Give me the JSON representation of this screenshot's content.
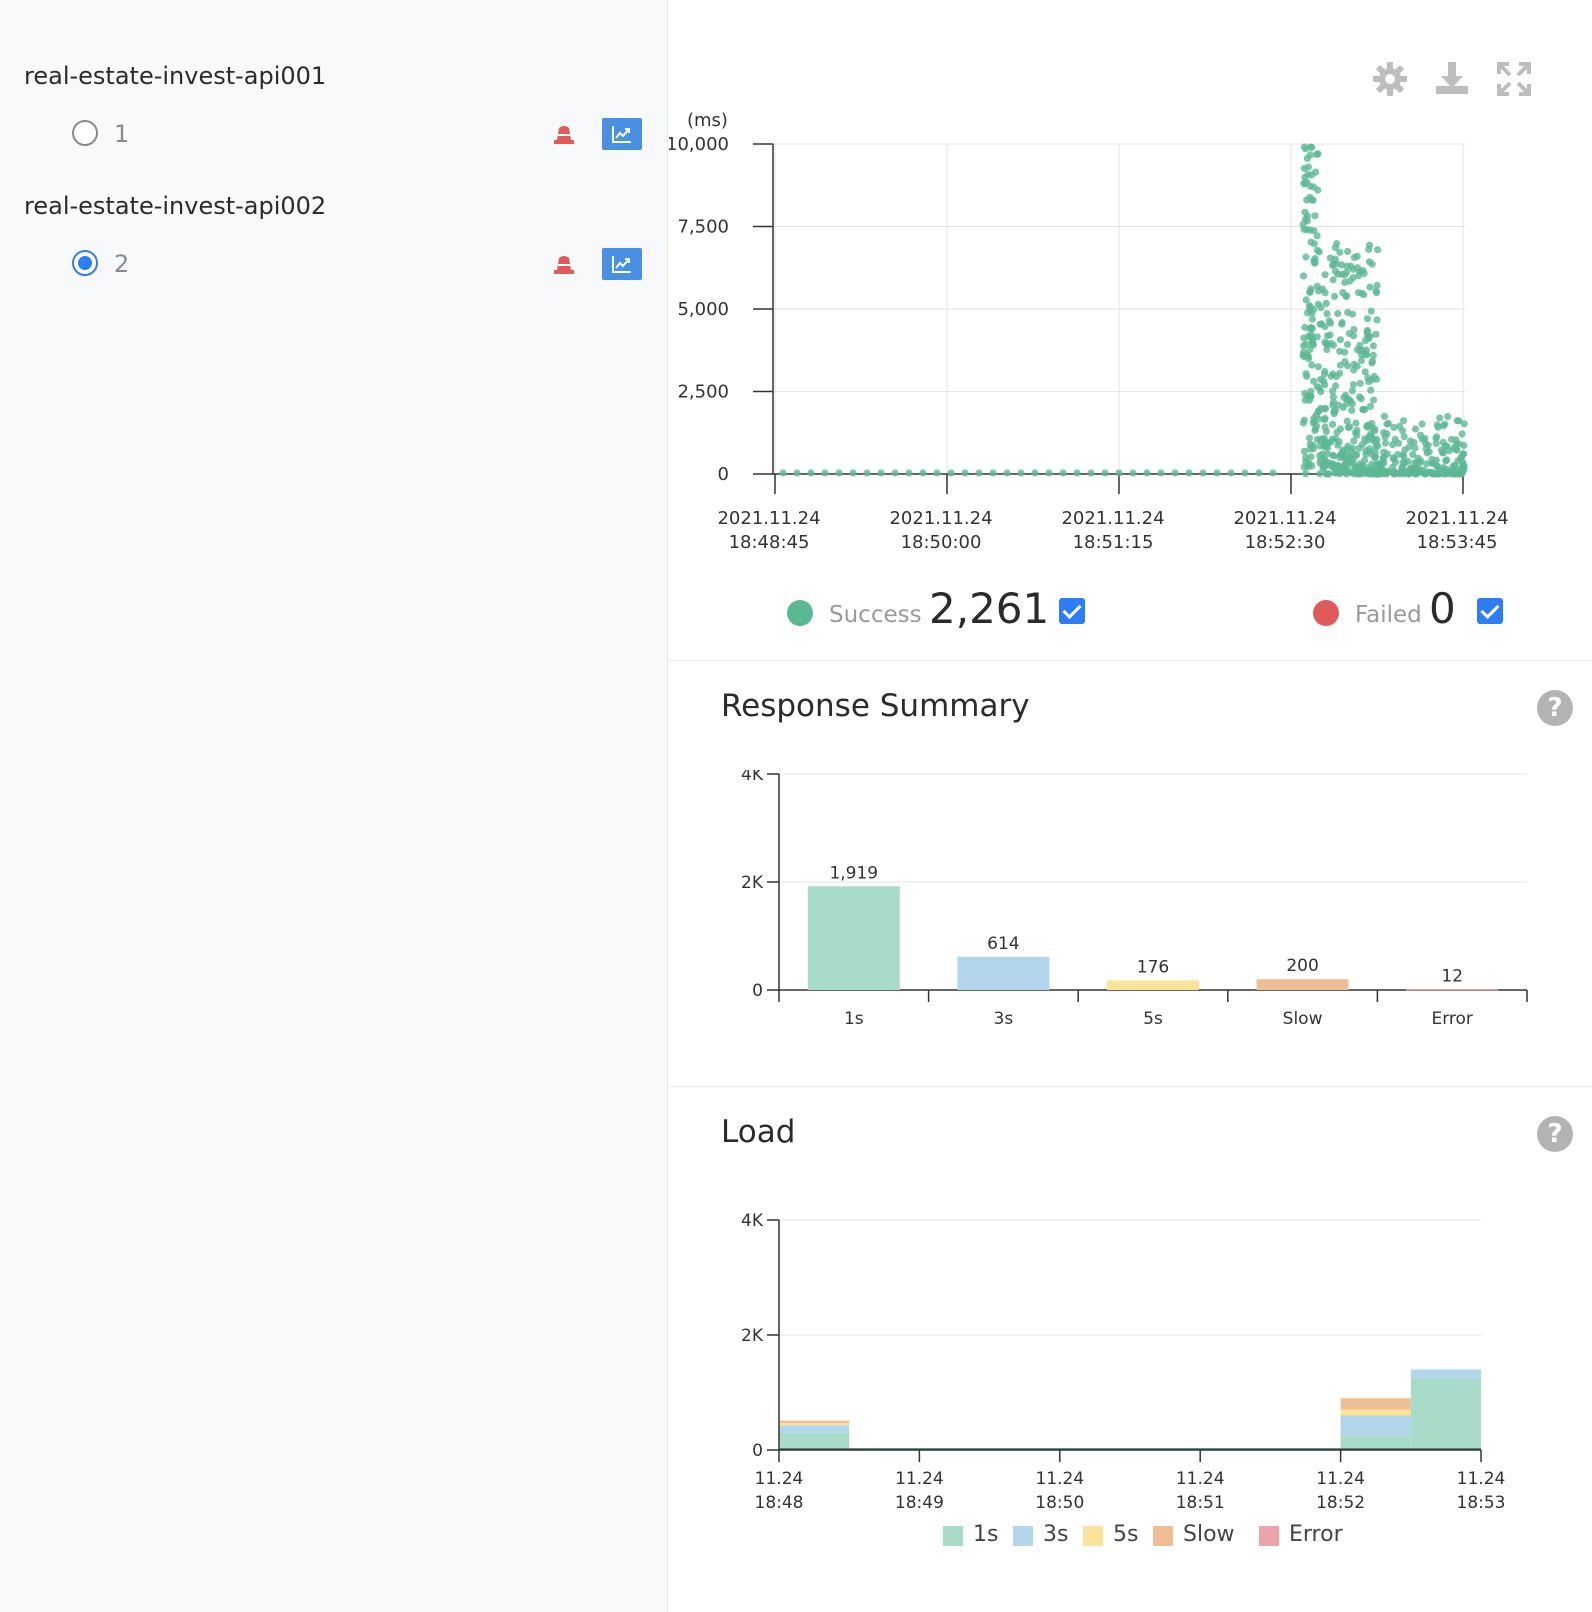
{
  "sidebar": {
    "groups": [
      {
        "title": "real-estate-invest-api001",
        "agents": [
          {
            "label": "1",
            "selected": false
          }
        ]
      },
      {
        "title": "real-estate-invest-api002",
        "agents": [
          {
            "label": "2",
            "selected": true
          }
        ]
      }
    ]
  },
  "toolbar": {
    "icons": [
      "gear-icon",
      "download-icon",
      "expand-icon"
    ]
  },
  "scatter": {
    "success_label": "Success",
    "success_count": "2,261",
    "failed_label": "Failed",
    "failed_count": "0",
    "success_color": "#5cb894",
    "failed_color": "#e05a5a"
  },
  "response_summary": {
    "title": "Response Summary"
  },
  "load": {
    "title": "Load"
  },
  "chart_data": [
    {
      "type": "scatter",
      "ylabel": "(ms)",
      "ylim": [
        0,
        10000
      ],
      "y_ticks": [
        "10,000",
        "7,500",
        "5,000",
        "2,500",
        "0"
      ],
      "x_ticks": [
        [
          "2021.11.24",
          "18:48:45"
        ],
        [
          "2021.11.24",
          "18:50:00"
        ],
        [
          "2021.11.24",
          "18:51:15"
        ],
        [
          "2021.11.24",
          "18:52:30"
        ],
        [
          "2021.11.24",
          "18:53:45"
        ]
      ],
      "series": [
        {
          "name": "Success",
          "color": "#5cb894",
          "count": 2261
        },
        {
          "name": "Failed",
          "color": "#e05a5a",
          "count": 0
        }
      ],
      "grid": true
    },
    {
      "type": "bar",
      "title": "Response Summary",
      "categories": [
        "1s",
        "3s",
        "5s",
        "Slow",
        "Error"
      ],
      "values": [
        1919,
        614,
        176,
        200,
        12
      ],
      "value_labels": [
        "1,919",
        "614",
        "176",
        "200",
        "12"
      ],
      "colors": [
        "#a8dcc8",
        "#b3d6ec",
        "#fbe39a",
        "#eebf94",
        "#eba5aa"
      ],
      "y_ticks": [
        "4K",
        "2K",
        "0"
      ],
      "ylim": [
        0,
        4000
      ],
      "grid": true
    },
    {
      "type": "area",
      "title": "Load",
      "x_ticks": [
        [
          "11.24",
          "18:48"
        ],
        [
          "11.24",
          "18:49"
        ],
        [
          "11.24",
          "18:50"
        ],
        [
          "11.24",
          "18:51"
        ],
        [
          "11.24",
          "18:52"
        ],
        [
          "11.24",
          "18:53"
        ]
      ],
      "y_ticks": [
        "4K",
        "2K",
        "0"
      ],
      "ylim": [
        0,
        4000
      ],
      "stacked": true,
      "series": [
        {
          "name": "1s",
          "color": "#a8dcc8",
          "values": [
            300,
            0,
            0,
            0,
            0,
            250,
            1250
          ]
        },
        {
          "name": "3s",
          "color": "#b3d6ec",
          "values": [
            130,
            0,
            0,
            0,
            0,
            350,
            150
          ]
        },
        {
          "name": "5s",
          "color": "#fbe39a",
          "values": [
            40,
            0,
            0,
            0,
            0,
            100,
            0
          ]
        },
        {
          "name": "Slow",
          "color": "#eebf94",
          "values": [
            40,
            0,
            0,
            0,
            0,
            200,
            0
          ]
        },
        {
          "name": "Error",
          "color": "#eba5aa",
          "values": [
            0,
            0,
            0,
            0,
            0,
            0,
            0
          ]
        }
      ],
      "legend_position": "bottom"
    }
  ]
}
